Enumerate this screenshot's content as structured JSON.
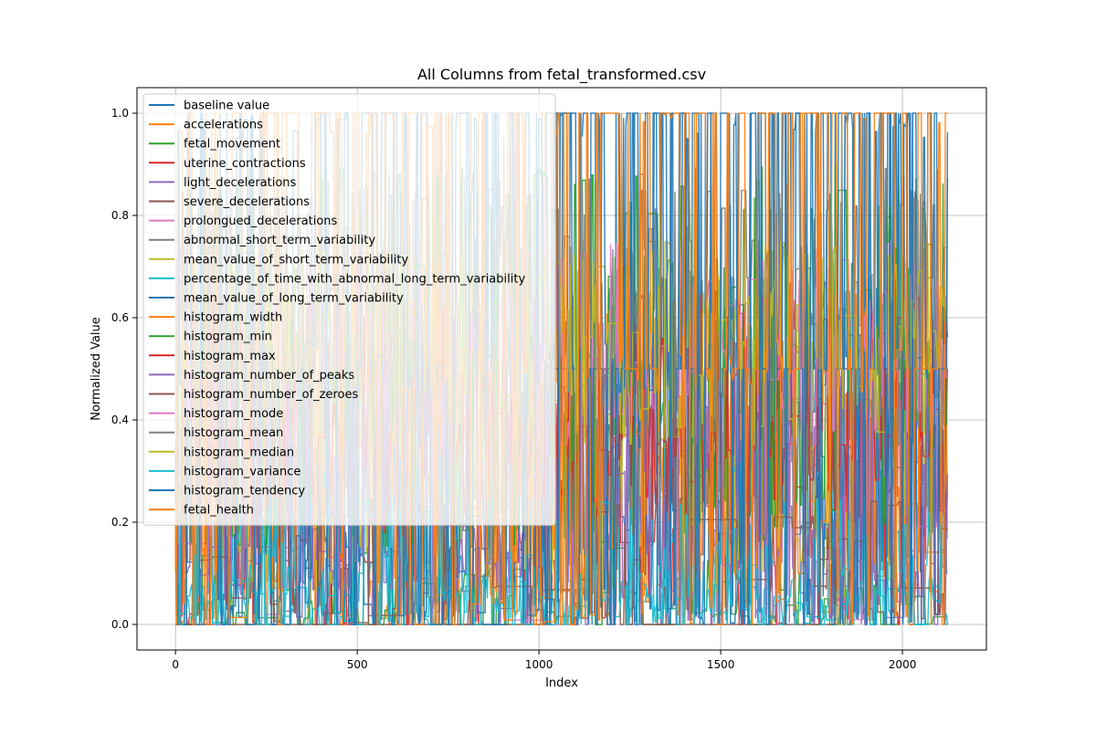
{
  "chart_data": {
    "type": "line",
    "title": "All Columns from fetal_transformed.csv",
    "xlabel": "Index",
    "ylabel": "Normalized Value",
    "xlim": [
      -106,
      2231
    ],
    "ylim": [
      -0.05,
      1.05
    ],
    "xticks": [
      0,
      500,
      1000,
      1500,
      2000
    ],
    "yticks": [
      0.0,
      0.2,
      0.4,
      0.6,
      0.8,
      1.0
    ],
    "xtick_labels": [
      "0",
      "500",
      "1000",
      "1500",
      "2000"
    ],
    "ytick_labels": [
      "0.0",
      "0.2",
      "0.4",
      "0.6",
      "0.8",
      "1.0"
    ],
    "n_points": 2126,
    "grid": true,
    "legend_position": "upper-left",
    "series": [
      {
        "name": "baseline value",
        "color": "#1f77b4",
        "levels": [
          0.15,
          0.25,
          0.35,
          0.45,
          0.55,
          0.65
        ],
        "density": 0.35
      },
      {
        "name": "accelerations",
        "color": "#ff7f0e",
        "levels": [
          0.0,
          0.05,
          0.15,
          0.3,
          0.5
        ],
        "density": 0.3
      },
      {
        "name": "fetal_movement",
        "color": "#2ca02c",
        "levels": [
          0.0,
          0.02,
          0.05,
          0.1
        ],
        "density": 0.2
      },
      {
        "name": "uterine_contractions",
        "color": "#d62728",
        "levels": [
          0.0,
          0.1,
          0.2,
          0.3,
          0.45
        ],
        "density": 0.4
      },
      {
        "name": "light_decelerations",
        "color": "#9467bd",
        "levels": [
          0.0,
          0.1,
          0.25,
          0.4
        ],
        "density": 0.25
      },
      {
        "name": "severe_decelerations",
        "color": "#8c564b",
        "levels": [
          0.0,
          0.5
        ],
        "density": 0.02
      },
      {
        "name": "prolongued_decelerations",
        "color": "#e377c2",
        "levels": [
          0.0,
          0.2,
          0.4
        ],
        "density": 0.08
      },
      {
        "name": "abnormal_short_term_variability",
        "color": "#7f7f7f",
        "levels": [
          0.2,
          0.35,
          0.5,
          0.65,
          0.8
        ],
        "density": 0.45
      },
      {
        "name": "mean_value_of_short_term_variability",
        "color": "#bcbd22",
        "levels": [
          0.1,
          0.2,
          0.3,
          0.45,
          0.6
        ],
        "density": 0.45
      },
      {
        "name": "percentage_of_time_with_abnormal_long_term_variability",
        "color": "#17becf",
        "levels": [
          0.0,
          0.05,
          0.1,
          0.3
        ],
        "density": 0.3
      },
      {
        "name": "mean_value_of_long_term_variability",
        "color": "#1f77b4",
        "levels": [
          0.0,
          0.1,
          0.2,
          0.35
        ],
        "density": 0.45
      },
      {
        "name": "histogram_width",
        "color": "#ff7f0e",
        "levels": [
          0.1,
          0.25,
          0.4,
          0.6
        ],
        "density": 0.45
      },
      {
        "name": "histogram_min",
        "color": "#2ca02c",
        "levels": [
          0.2,
          0.4,
          0.55,
          0.7,
          0.85
        ],
        "density": 0.45
      },
      {
        "name": "histogram_max",
        "color": "#d62728",
        "levels": [
          0.25,
          0.35,
          0.45,
          0.6
        ],
        "density": 0.45
      },
      {
        "name": "histogram_number_of_peaks",
        "color": "#9467bd",
        "levels": [
          0.05,
          0.15,
          0.3,
          0.5
        ],
        "density": 0.45
      },
      {
        "name": "histogram_number_of_zeroes",
        "color": "#8c564b",
        "levels": [
          0.0,
          0.1,
          0.2
        ],
        "density": 0.12
      },
      {
        "name": "histogram_mode",
        "color": "#e377c2",
        "levels": [
          0.4,
          0.5,
          0.6,
          0.7
        ],
        "density": 0.45
      },
      {
        "name": "histogram_mean",
        "color": "#7f7f7f",
        "levels": [
          0.4,
          0.5,
          0.6,
          0.7,
          0.85
        ],
        "density": 0.45
      },
      {
        "name": "histogram_median",
        "color": "#bcbd22",
        "levels": [
          0.4,
          0.5,
          0.6,
          0.7
        ],
        "density": 0.45
      },
      {
        "name": "histogram_variance",
        "color": "#17becf",
        "levels": [
          0.0,
          0.02,
          0.05,
          0.1,
          0.2
        ],
        "density": 0.45
      },
      {
        "name": "histogram_tendency",
        "color": "#1f77b4",
        "levels": [
          0.0,
          0.5,
          1.0
        ],
        "density": 0.35
      },
      {
        "name": "fetal_health",
        "color": "#ff7f0e",
        "levels": [
          0.0,
          0.5,
          1.0
        ],
        "density": 0.25
      }
    ]
  }
}
